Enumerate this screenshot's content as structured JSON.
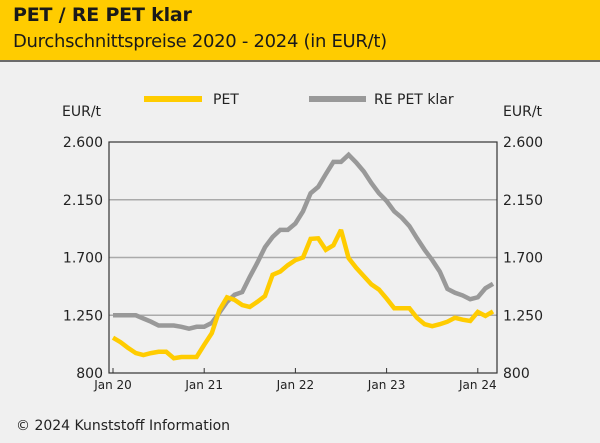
{
  "header": {
    "title": "PET / RE PET klar",
    "subtitle": "Durchschnittspreise 2020 - 2024 (in EUR/t)"
  },
  "footer": {
    "copyright": "© 2024 Kunststoff Information"
  },
  "colors": {
    "header_bg": "#ffcc00",
    "pet": "#ffcc00",
    "re_pet": "#999999",
    "grid": "#aaaaaa",
    "background": "#f0f0f0"
  },
  "chart_data": {
    "type": "line",
    "title": "PET / RE PET klar",
    "subtitle": "Durchschnittspreise 2020 - 2024 (in EUR/t)",
    "xlabel": "",
    "ylabel_left": "EUR/t",
    "ylabel_right": "EUR/t",
    "ylim": [
      800,
      2600
    ],
    "yticks": [
      800,
      1250,
      1700,
      2150,
      2600
    ],
    "ytick_labels": [
      "800",
      "1.250",
      "1.700",
      "2.150",
      "2.600"
    ],
    "xticks": [
      "Jan 20",
      "Jan 21",
      "Jan 22",
      "Jan 23",
      "Jan 24"
    ],
    "xtick_month_index": [
      0,
      12,
      24,
      36,
      48
    ],
    "x_start": "Jan 2020",
    "x_end": "Mar 2024",
    "grid": "horizontal",
    "legend_position": "top-center",
    "x": [
      "2020-01",
      "2020-02",
      "2020-03",
      "2020-04",
      "2020-05",
      "2020-06",
      "2020-07",
      "2020-08",
      "2020-09",
      "2020-10",
      "2020-11",
      "2020-12",
      "2021-01",
      "2021-02",
      "2021-03",
      "2021-04",
      "2021-05",
      "2021-06",
      "2021-07",
      "2021-08",
      "2021-09",
      "2021-10",
      "2021-11",
      "2021-12",
      "2022-01",
      "2022-02",
      "2022-03",
      "2022-04",
      "2022-05",
      "2022-06",
      "2022-07",
      "2022-08",
      "2022-09",
      "2022-10",
      "2022-11",
      "2022-12",
      "2023-01",
      "2023-02",
      "2023-03",
      "2023-04",
      "2023-05",
      "2023-06",
      "2023-07",
      "2023-08",
      "2023-09",
      "2023-10",
      "2023-11",
      "2023-12",
      "2024-01",
      "2024-02",
      "2024-03"
    ],
    "series": [
      {
        "name": "PET",
        "color": "#ffcc00",
        "values": [
          1075,
          1040,
          995,
          955,
          940,
          955,
          965,
          965,
          915,
          925,
          925,
          925,
          1020,
          1110,
          1290,
          1390,
          1370,
          1330,
          1315,
          1355,
          1400,
          1565,
          1590,
          1640,
          1680,
          1700,
          1845,
          1850,
          1760,
          1795,
          1915,
          1695,
          1620,
          1555,
          1490,
          1450,
          1380,
          1305,
          1305,
          1305,
          1230,
          1180,
          1165,
          1180,
          1200,
          1230,
          1215,
          1205,
          1275,
          1245,
          1280
        ]
      },
      {
        "name": "RE PET klar",
        "color": "#999999",
        "values": [
          1250,
          1250,
          1250,
          1250,
          1225,
          1200,
          1170,
          1170,
          1170,
          1160,
          1145,
          1160,
          1160,
          1190,
          1270,
          1355,
          1410,
          1430,
          1550,
          1660,
          1780,
          1860,
          1915,
          1915,
          1965,
          2060,
          2200,
          2250,
          2350,
          2445,
          2445,
          2500,
          2440,
          2370,
          2280,
          2200,
          2140,
          2060,
          2010,
          1945,
          1850,
          1760,
          1680,
          1590,
          1455,
          1425,
          1405,
          1375,
          1390,
          1460,
          1495
        ]
      }
    ]
  }
}
